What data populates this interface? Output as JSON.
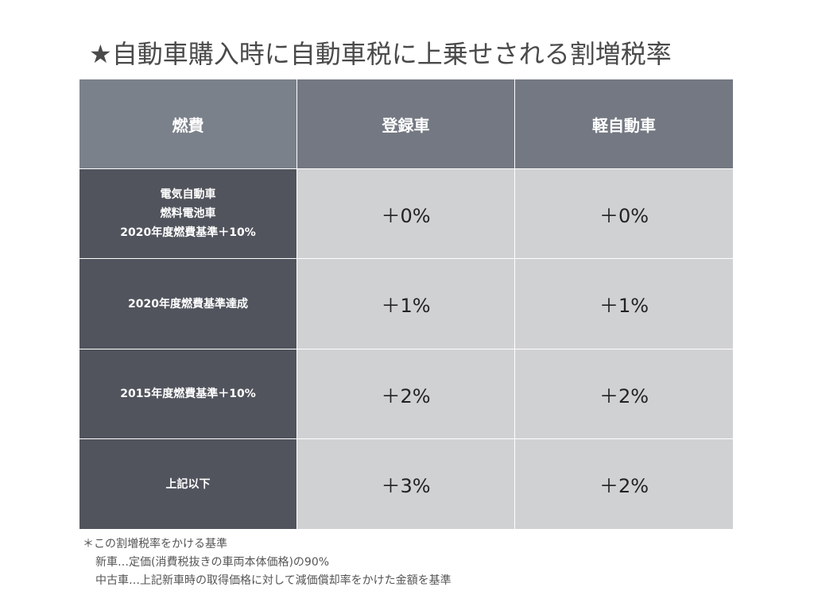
{
  "title": "★自動車購入時に自動車税に上乗せされる割増税率",
  "table": {
    "headers": [
      "燃費",
      "登録車",
      "軽自動車"
    ],
    "rows": [
      {
        "label_lines": [
          "電気自動車",
          "燃料電池車",
          "2020年度燃費基準＋10%"
        ],
        "registered": "＋0%",
        "kei": "＋0%"
      },
      {
        "label_lines": [
          "2020年度燃費基準達成"
        ],
        "registered": "＋1%",
        "kei": "＋1%"
      },
      {
        "label_lines": [
          "2015年度燃費基準＋10%"
        ],
        "registered": "＋2%",
        "kei": "＋2%"
      },
      {
        "label_lines": [
          "上記以下"
        ],
        "registered": "＋3%",
        "kei": "＋2%"
      }
    ]
  },
  "footnote": {
    "heading": "＊この割増税率をかける基準",
    "new_car": "新車…定価(消費税抜きの車両本体価格)の90%",
    "used_car": "中古車…上記新車時の取得価格に対して減価償却率をかけた金額を基準"
  }
}
